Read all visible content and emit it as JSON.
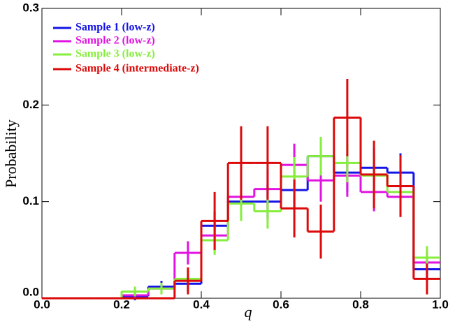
{
  "chart_data": {
    "type": "step-histogram",
    "xlabel": "q",
    "ylabel": "Probability",
    "bins": [
      0,
      0.067,
      0.133,
      0.2,
      0.267,
      0.333,
      0.4,
      0.467,
      0.533,
      0.6,
      0.667,
      0.733,
      0.8,
      0.867,
      0.933,
      1
    ],
    "xlim": [
      0,
      1
    ],
    "ylim": [
      0,
      0.3
    ],
    "xticks": [
      {
        "value": 0,
        "label": "0.0"
      },
      0.2,
      0.4,
      0.6,
      0.8,
      {
        "value": 1,
        "label": "1.0"
      }
    ],
    "yticks": [
      {
        "value": 0,
        "label": "0.0"
      },
      0.1,
      0.2,
      0.3
    ],
    "legend": "upper left",
    "series": [
      {
        "name": "Sample 1 (low-z)",
        "color": "#1414e6",
        "values": [
          0,
          0,
          0,
          0.002,
          0.012,
          0.015,
          0.075,
          0.1,
          0.1,
          0.112,
          0.147,
          0.13,
          0.135,
          0.13,
          0.03
        ],
        "errors": [
          null,
          null,
          null,
          0.004,
          0.006,
          0.008,
          0.015,
          0.018,
          0.018,
          0.02,
          0.02,
          0.02,
          0.02,
          0.02,
          0.012
        ]
      },
      {
        "name": "Sample 2 (low-z)",
        "color": "#e014e0",
        "values": [
          0,
          0,
          0,
          0.003,
          0.01,
          0.047,
          0.065,
          0.105,
          0.113,
          0.138,
          0.122,
          0.127,
          0.11,
          0.105,
          0.037
        ],
        "errors": [
          null,
          null,
          null,
          0.004,
          0.006,
          0.012,
          0.016,
          0.02,
          0.02,
          0.022,
          0.022,
          0.022,
          0.02,
          0.02,
          0.012
        ]
      },
      {
        "name": "Sample 3 (low-z)",
        "color": "#86ee3c",
        "values": [
          0,
          0,
          0,
          0.007,
          0.01,
          0.02,
          0.06,
          0.098,
          0.09,
          0.126,
          0.147,
          0.14,
          0.127,
          0.11,
          0.042
        ],
        "errors": [
          null,
          null,
          null,
          0.005,
          0.006,
          0.01,
          0.015,
          0.018,
          0.018,
          0.02,
          0.02,
          0.02,
          0.02,
          0.02,
          0.012
        ]
      },
      {
        "name": "Sample 4 (intermediate-z)",
        "color": "#dc0a0a",
        "values": [
          0,
          0,
          0,
          0,
          0,
          0.018,
          0.08,
          0.14,
          0.14,
          0.093,
          0.069,
          0.187,
          0.128,
          0.116,
          0.02
        ],
        "errors": [
          null,
          null,
          null,
          null,
          null,
          0.014,
          0.03,
          0.038,
          0.038,
          0.03,
          0.028,
          0.04,
          0.035,
          0.032,
          0.016
        ]
      }
    ]
  }
}
